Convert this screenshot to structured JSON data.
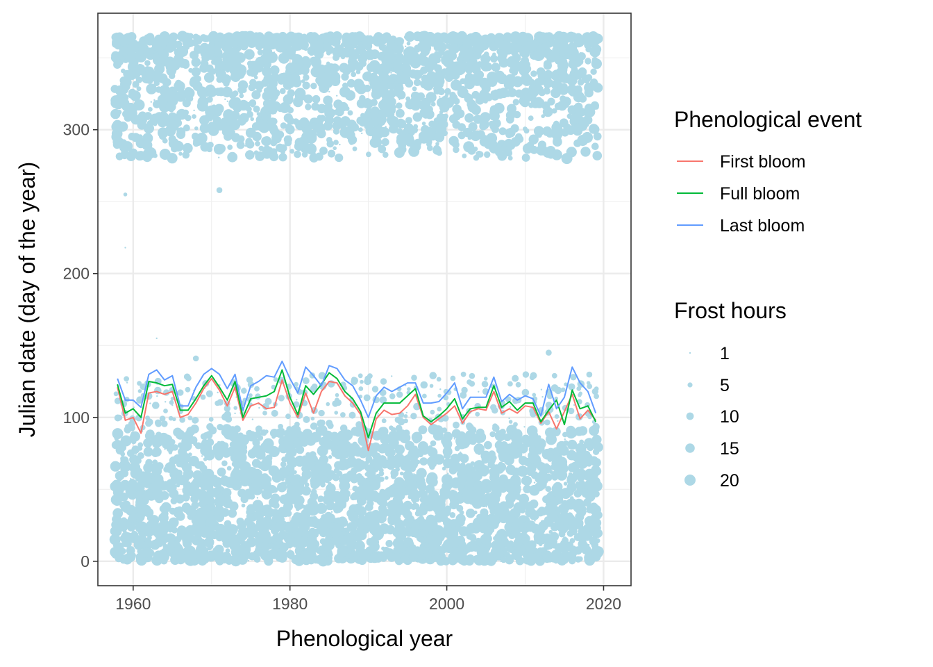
{
  "chart_data": {
    "type": "scatter",
    "xlabel": "Phenological year",
    "ylabel": "Julian date (day of the year)",
    "xlim": [
      1955.5,
      2023.5
    ],
    "ylim": [
      -17,
      381
    ],
    "x_ticks": [
      1960,
      1980,
      2000,
      2020
    ],
    "y_ticks": [
      0,
      100,
      200,
      300
    ],
    "grid": true,
    "legend_position": "right",
    "point_color": "#add8e6",
    "legends": [
      {
        "title": "Phenological event",
        "items": [
          {
            "label": "First bloom",
            "color": "#f8766d"
          },
          {
            "label": "Full bloom",
            "color": "#00ba38"
          },
          {
            "label": "Last bloom",
            "color": "#619cff"
          }
        ]
      },
      {
        "title": "Frost hours",
        "items": [
          {
            "label": "1",
            "value": 1
          },
          {
            "label": "5",
            "value": 5
          },
          {
            "label": "10",
            "value": 10
          },
          {
            "label": "15",
            "value": 15
          },
          {
            "label": "20",
            "value": 20
          }
        ]
      }
    ],
    "x": [
      1958,
      1959,
      1960,
      1961,
      1962,
      1963,
      1964,
      1965,
      1966,
      1967,
      1968,
      1969,
      1970,
      1971,
      1972,
      1973,
      1974,
      1975,
      1976,
      1977,
      1978,
      1979,
      1980,
      1981,
      1982,
      1983,
      1984,
      1985,
      1986,
      1987,
      1988,
      1989,
      1990,
      1991,
      1992,
      1993,
      1994,
      1995,
      1996,
      1997,
      1998,
      1999,
      2000,
      2001,
      2002,
      2003,
      2004,
      2005,
      2006,
      2007,
      2008,
      2009,
      2010,
      2011,
      2012,
      2013,
      2014,
      2015,
      2016,
      2017,
      2018,
      2019
    ],
    "series": [
      {
        "name": "First bloom",
        "color": "#f8766d",
        "values": [
          121,
          98,
          100,
          89,
          117,
          118,
          116,
          118,
          100,
          102,
          110,
          120,
          127,
          119,
          108,
          121,
          98,
          108,
          110,
          106,
          107,
          126,
          110,
          100,
          117,
          103,
          118,
          125,
          124,
          115,
          110,
          102,
          77,
          99,
          105,
          102,
          103,
          108,
          116,
          100,
          95,
          99,
          103,
          108,
          96,
          104,
          106,
          105,
          118,
          103,
          106,
          103,
          108,
          107,
          96,
          104,
          92,
          104,
          116,
          99,
          105,
          98
        ]
      },
      {
        "name": "Full bloom",
        "color": "#00ba38",
        "values": [
          123,
          103,
          106,
          100,
          125,
          124,
          122,
          123,
          105,
          105,
          113,
          122,
          129,
          121,
          112,
          125,
          100,
          113,
          114,
          115,
          118,
          133,
          114,
          102,
          122,
          116,
          123,
          131,
          127,
          118,
          113,
          104,
          86,
          103,
          110,
          110,
          110,
          115,
          120,
          101,
          97,
          101,
          106,
          113,
          99,
          106,
          107,
          107,
          122,
          107,
          111,
          105,
          110,
          110,
          97,
          105,
          112,
          95,
          119,
          106,
          108,
          97
        ]
      },
      {
        "name": "Last bloom",
        "color": "#619cff",
        "values": [
          127,
          112,
          112,
          107,
          130,
          133,
          126,
          129,
          108,
          108,
          121,
          130,
          134,
          130,
          120,
          130,
          105,
          122,
          125,
          129,
          128,
          139,
          127,
          117,
          135,
          129,
          122,
          136,
          134,
          126,
          122,
          112,
          100,
          115,
          121,
          118,
          121,
          124,
          124,
          110,
          110,
          111,
          117,
          124,
          106,
          114,
          114,
          114,
          128,
          111,
          116,
          112,
          115,
          113,
          101,
          123,
          106,
          114,
          135,
          124,
          118,
          103
        ]
      }
    ]
  }
}
